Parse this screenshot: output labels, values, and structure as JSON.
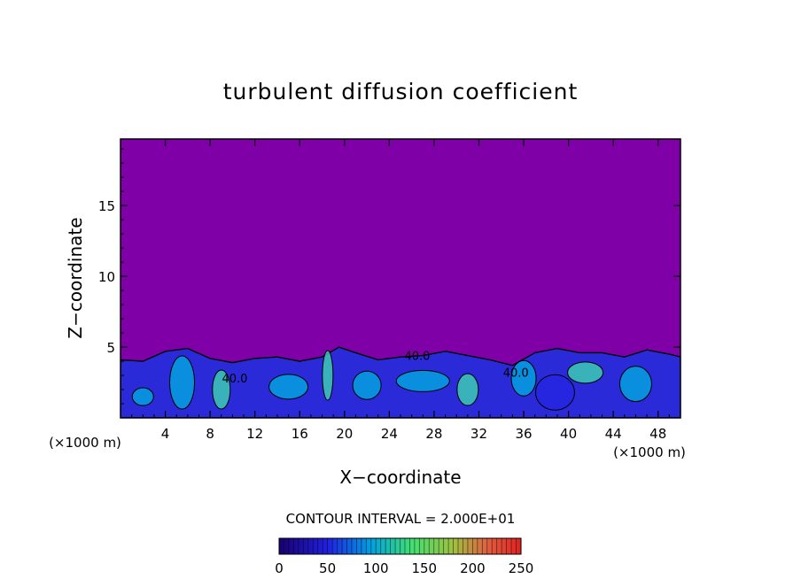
{
  "chart_data": {
    "type": "heatmap",
    "title": "turbulent diffusion coefficient",
    "xlabel": "X−coordinate",
    "ylabel": "Z−coordinate",
    "x_unit_left": "(×1000 m)",
    "x_unit_right": "(×1000 m)",
    "xlim": [
      0,
      50
    ],
    "ylim": [
      0,
      19.7
    ],
    "x_ticks": [
      4,
      8,
      12,
      16,
      20,
      24,
      28,
      32,
      36,
      40,
      44,
      48
    ],
    "y_ticks": [
      5,
      10,
      15
    ],
    "contour_interval_text": "CONTOUR INTERVAL = 2.000E+01",
    "contour_labels": [
      {
        "text": "40.0",
        "x": 10.2,
        "z": 2.5
      },
      {
        "text": "40.0",
        "x": 26.5,
        "z": 4.1
      },
      {
        "text": "40.0",
        "x": 35.3,
        "z": 2.9
      }
    ],
    "colorbar": {
      "min": 0,
      "max": 250,
      "tick_labels": [
        "0",
        "50",
        "100",
        "150",
        "200",
        "250"
      ],
      "tick_values": [
        0,
        50,
        100,
        150,
        200,
        250
      ]
    },
    "boundary_layer_top_km": [
      [
        0,
        4.1
      ],
      [
        2,
        4.0
      ],
      [
        4,
        4.7
      ],
      [
        6,
        4.9
      ],
      [
        8,
        4.2
      ],
      [
        10,
        3.9
      ],
      [
        12,
        4.2
      ],
      [
        14,
        4.3
      ],
      [
        16,
        4.0
      ],
      [
        18,
        4.3
      ],
      [
        19.5,
        5.0
      ],
      [
        21,
        4.6
      ],
      [
        23,
        4.1
      ],
      [
        25,
        4.3
      ],
      [
        27,
        4.4
      ],
      [
        29,
        4.7
      ],
      [
        31,
        4.4
      ],
      [
        33,
        4.1
      ],
      [
        35,
        3.7
      ],
      [
        37,
        4.6
      ],
      [
        39,
        4.9
      ],
      [
        41,
        4.6
      ],
      [
        43,
        4.6
      ],
      [
        45,
        4.3
      ],
      [
        47,
        4.8
      ],
      [
        49,
        4.5
      ],
      [
        50,
        4.3
      ]
    ],
    "colors": {
      "background_field": "#7f00a7",
      "low_values": "#2626e3",
      "mid_values": "#00b0e0",
      "high_values": "#40e0b0",
      "contour_line": "#000000"
    }
  }
}
